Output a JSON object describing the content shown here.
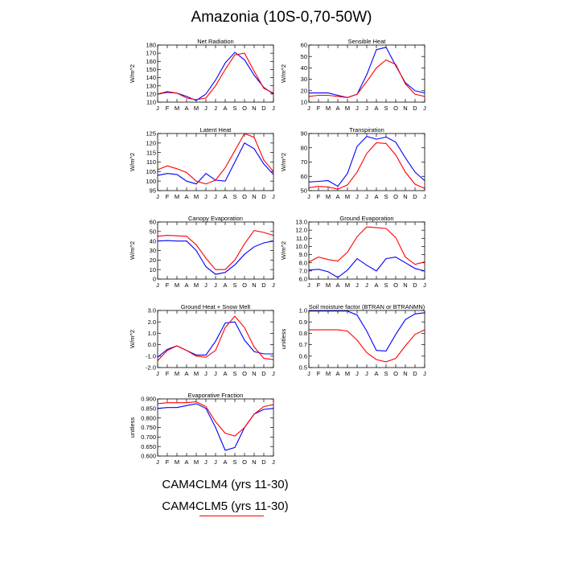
{
  "title": "Amazonia (10S-0,70-50W)",
  "legend": {
    "entries": [
      "CAM4CLM4 (yrs 11-30)",
      "CAM4CLM5 (yrs 11-30)"
    ],
    "colors": {
      "CAM4CLM4 (yrs 11-30)": "#0000ff",
      "CAM4CLM5 (yrs 11-30)": "#ff0000"
    }
  },
  "chart_data": [
    {
      "type": "line",
      "title": "Net Radiation",
      "ylabel": "W/m^2",
      "x": [
        "J",
        "F",
        "M",
        "A",
        "M",
        "J",
        "J",
        "A",
        "S",
        "O",
        "N",
        "D",
        "J"
      ],
      "ylim": [
        110,
        180
      ],
      "yticks": [
        "110",
        "120",
        "130",
        "140",
        "150",
        "160",
        "170",
        "180"
      ],
      "series": [
        {
          "name": "CAM4CLM4 (yrs 11-30)",
          "color": "#0000ff",
          "values": [
            120,
            122,
            121,
            117,
            112,
            120,
            137,
            158,
            171,
            162,
            143,
            128,
            120
          ]
        },
        {
          "name": "CAM4CLM5 (yrs 11-30)",
          "color": "#ff0000",
          "values": [
            120,
            123,
            121,
            115,
            113,
            115,
            130,
            150,
            168,
            170,
            148,
            127,
            121
          ]
        }
      ]
    },
    {
      "type": "line",
      "title": "Sensible Heat",
      "ylabel": "W/m^2",
      "x": [
        "J",
        "F",
        "M",
        "A",
        "M",
        "J",
        "J",
        "A",
        "S",
        "O",
        "N",
        "D",
        "J"
      ],
      "ylim": [
        10,
        60
      ],
      "yticks": [
        "10",
        "20",
        "30",
        "40",
        "50",
        "60"
      ],
      "series": [
        {
          "name": "CAM4CLM4 (yrs 11-30)",
          "color": "#0000ff",
          "values": [
            18,
            18,
            18,
            16,
            14,
            17,
            34,
            56,
            58,
            42,
            27,
            20,
            18
          ]
        },
        {
          "name": "CAM4CLM5 (yrs 11-30)",
          "color": "#ff0000",
          "values": [
            15,
            16,
            16,
            15,
            14,
            17,
            28,
            40,
            47,
            43,
            26,
            17,
            15
          ]
        }
      ]
    },
    {
      "type": "line",
      "title": "Latent Heat",
      "ylabel": "W/m^2",
      "x": [
        "J",
        "F",
        "M",
        "A",
        "M",
        "J",
        "J",
        "A",
        "S",
        "O",
        "N",
        "D",
        "J"
      ],
      "ylim": [
        95,
        125
      ],
      "yticks": [
        "95",
        "100",
        "105",
        "110",
        "115",
        "120",
        "125"
      ],
      "series": [
        {
          "name": "CAM4CLM4 (yrs 11-30)",
          "color": "#0000ff",
          "values": [
            103,
            104,
            103.5,
            100,
            98.5,
            104,
            100.5,
            100,
            110,
            120,
            117,
            109,
            103.5
          ]
        },
        {
          "name": "CAM4CLM5 (yrs 11-30)",
          "color": "#ff0000",
          "values": [
            106,
            108,
            106.5,
            104.5,
            100,
            98.5,
            100.5,
            107,
            116,
            125,
            123,
            111,
            105
          ]
        }
      ]
    },
    {
      "type": "line",
      "title": "Transpiration",
      "ylabel": "W/m^2",
      "x": [
        "J",
        "F",
        "M",
        "A",
        "M",
        "J",
        "J",
        "A",
        "S",
        "O",
        "N",
        "D",
        "J"
      ],
      "ylim": [
        50,
        90
      ],
      "yticks": [
        "50",
        "60",
        "70",
        "80",
        "90"
      ],
      "series": [
        {
          "name": "CAM4CLM4 (yrs 11-30)",
          "color": "#0000ff",
          "values": [
            56,
            56.5,
            57,
            53,
            62,
            81,
            88,
            86,
            87.5,
            84,
            73,
            63,
            57
          ]
        },
        {
          "name": "CAM4CLM5 (yrs 11-30)",
          "color": "#ff0000",
          "values": [
            52,
            53,
            52.5,
            51,
            54,
            63,
            76,
            83.5,
            83,
            75,
            63,
            54.5,
            51.5
          ]
        }
      ]
    },
    {
      "type": "line",
      "title": "Canopy Evaporation",
      "ylabel": "W/m^2",
      "x": [
        "J",
        "F",
        "M",
        "A",
        "M",
        "J",
        "J",
        "A",
        "S",
        "O",
        "N",
        "D",
        "J"
      ],
      "ylim": [
        0,
        60
      ],
      "yticks": [
        "0",
        "10",
        "20",
        "30",
        "40",
        "50",
        "60"
      ],
      "series": [
        {
          "name": "CAM4CLM4 (yrs 11-30)",
          "color": "#0000ff",
          "values": [
            40,
            40.5,
            40,
            40,
            30,
            13,
            5,
            7,
            15,
            26,
            34,
            38,
            40
          ]
        },
        {
          "name": "CAM4CLM5 (yrs 11-30)",
          "color": "#ff0000",
          "values": [
            45,
            46,
            45.5,
            45,
            36,
            22,
            10,
            10,
            20,
            37,
            51,
            49,
            46
          ]
        }
      ]
    },
    {
      "type": "line",
      "title": "Ground Evaporation",
      "ylabel": "W/m^2",
      "x": [
        "J",
        "F",
        "M",
        "A",
        "M",
        "J",
        "J",
        "A",
        "S",
        "O",
        "N",
        "D",
        "J"
      ],
      "ylim": [
        6.0,
        13.0
      ],
      "yticks": [
        "6.0",
        "7.0",
        "8.0",
        "9.0",
        "10.0",
        "11.0",
        "12.0",
        "13.0"
      ],
      "series": [
        {
          "name": "CAM4CLM4 (yrs 11-30)",
          "color": "#0000ff",
          "values": [
            7.1,
            7.2,
            6.9,
            6.2,
            7.1,
            8.5,
            7.7,
            7.0,
            8.5,
            8.7,
            8.0,
            7.3,
            7.0
          ]
        },
        {
          "name": "CAM4CLM5 (yrs 11-30)",
          "color": "#ff0000",
          "values": [
            8.1,
            8.7,
            8.4,
            8.2,
            9.3,
            11.2,
            12.4,
            12.3,
            12.2,
            11.1,
            8.7,
            7.8,
            8.1
          ]
        }
      ]
    },
    {
      "type": "line",
      "title": "Ground Heat + Snow Melt",
      "ylabel": "W/m^2",
      "x": [
        "J",
        "F",
        "M",
        "A",
        "M",
        "J",
        "J",
        "A",
        "S",
        "O",
        "N",
        "D",
        "J"
      ],
      "ylim": [
        -2.0,
        3.0
      ],
      "yticks": [
        "-2.0",
        "-1.0",
        "0.0",
        "1.0",
        "2.0",
        "3.0"
      ],
      "series": [
        {
          "name": "CAM4CLM4 (yrs 11-30)",
          "color": "#0000ff",
          "values": [
            -1.1,
            -0.4,
            -0.1,
            -0.5,
            -0.9,
            -0.9,
            0.3,
            1.9,
            2.0,
            0.4,
            -0.6,
            -0.8,
            -0.8
          ]
        },
        {
          "name": "CAM4CLM5 (yrs 11-30)",
          "color": "#ff0000",
          "values": [
            -1.4,
            -0.5,
            -0.1,
            -0.5,
            -1.0,
            -1.1,
            -0.5,
            1.5,
            2.5,
            1.5,
            -0.2,
            -1.2,
            -1.3
          ]
        }
      ]
    },
    {
      "type": "line",
      "title": "Soil moisture factor (BTRAN or BTRANMN)",
      "ylabel": "unitless",
      "x": [
        "J",
        "F",
        "M",
        "A",
        "M",
        "J",
        "J",
        "A",
        "S",
        "O",
        "N",
        "D",
        "J"
      ],
      "ylim": [
        0.5,
        1.0
      ],
      "yticks": [
        "0.5",
        "0.6",
        "0.7",
        "0.8",
        "0.9",
        "1.0"
      ],
      "series": [
        {
          "name": "CAM4CLM4 (yrs 11-30)",
          "color": "#0000ff",
          "values": [
            0.995,
            0.995,
            0.995,
            0.995,
            0.995,
            0.96,
            0.82,
            0.65,
            0.645,
            0.79,
            0.92,
            0.97,
            0.98
          ]
        },
        {
          "name": "CAM4CLM5 (yrs 11-30)",
          "color": "#ff0000",
          "values": [
            0.83,
            0.83,
            0.83,
            0.83,
            0.82,
            0.74,
            0.63,
            0.57,
            0.55,
            0.58,
            0.69,
            0.79,
            0.83
          ]
        }
      ]
    },
    {
      "type": "line",
      "title": "Evaporative Fraction",
      "ylabel": "unitless",
      "x": [
        "J",
        "F",
        "M",
        "A",
        "M",
        "J",
        "J",
        "A",
        "S",
        "O",
        "N",
        "D",
        "J"
      ],
      "ylim": [
        0.6,
        0.9
      ],
      "yticks": [
        "0.600",
        "0.650",
        "0.700",
        "0.750",
        "0.800",
        "0.850",
        "0.900"
      ],
      "series": [
        {
          "name": "CAM4CLM4 (yrs 11-30)",
          "color": "#0000ff",
          "values": [
            0.85,
            0.855,
            0.855,
            0.865,
            0.875,
            0.85,
            0.75,
            0.63,
            0.645,
            0.75,
            0.82,
            0.845,
            0.85
          ]
        },
        {
          "name": "CAM4CLM5 (yrs 11-30)",
          "color": "#ff0000",
          "values": [
            0.875,
            0.88,
            0.88,
            0.88,
            0.885,
            0.86,
            0.78,
            0.72,
            0.705,
            0.75,
            0.82,
            0.86,
            0.87
          ]
        }
      ]
    }
  ]
}
